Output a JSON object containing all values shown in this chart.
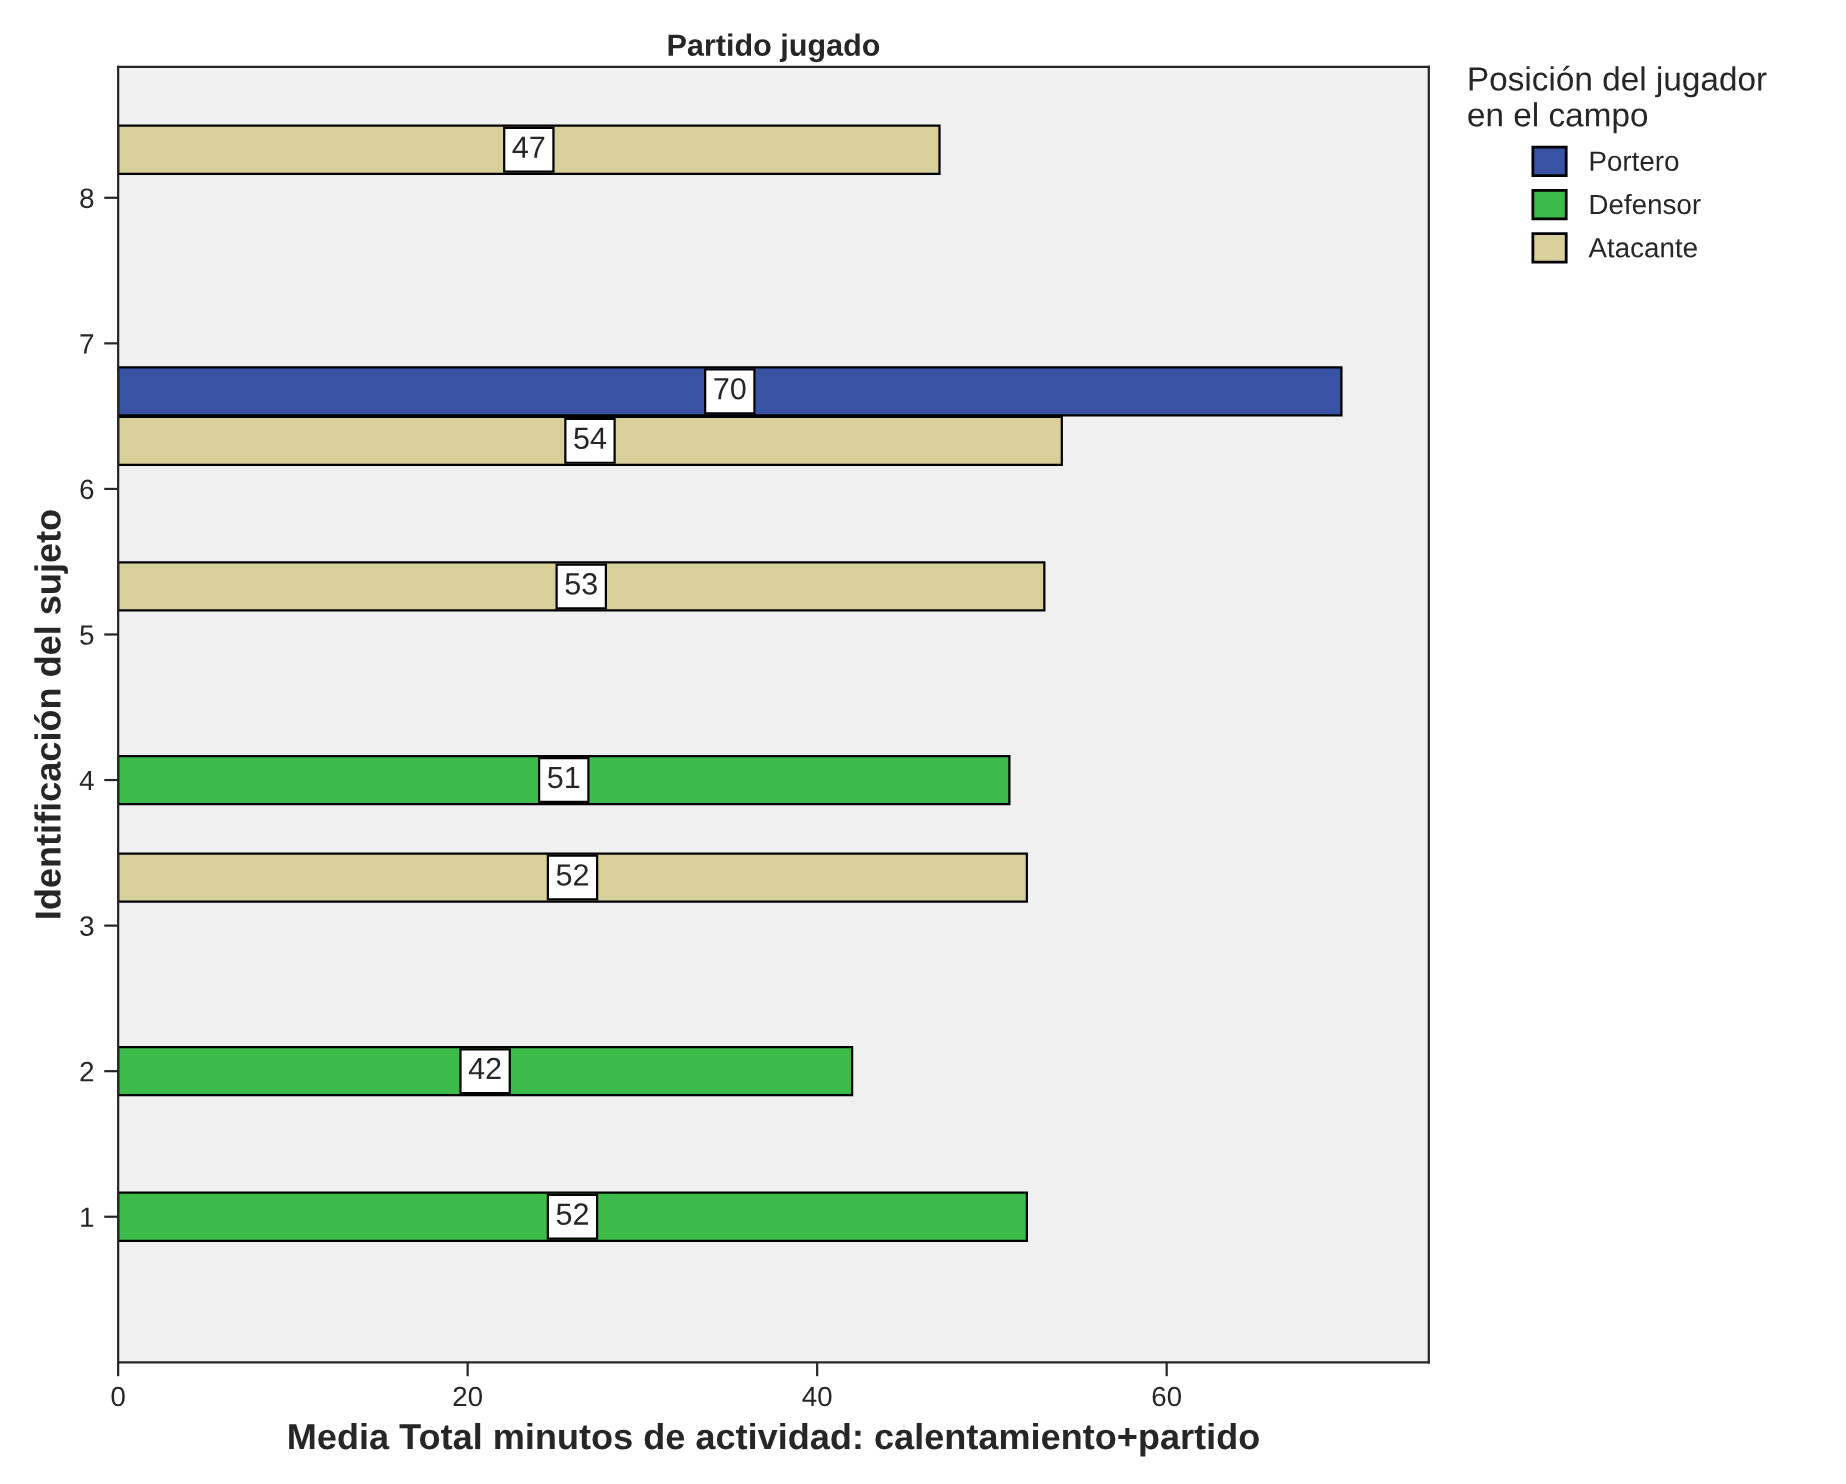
{
  "chart_data": {
    "type": "bar",
    "orientation": "horizontal",
    "title": "Partido jugado",
    "xlabel": "Media Total minutos de actividad: calentamiento+partido",
    "ylabel": "Identificación del sujeto",
    "legend_title": "Posición del jugador\nen el campo",
    "legend": "top right",
    "data_labels": true,
    "grid": false,
    "xlim": [
      0,
      75
    ],
    "xticks": [
      0,
      20,
      40,
      60
    ],
    "ylim": [
      0,
      8.9
    ],
    "yticks": [
      1,
      2,
      3,
      4,
      5,
      6,
      7,
      8
    ],
    "series": [
      {
        "name": "Portero",
        "color": "#3953a4",
        "x": [
          6.67
        ],
        "values": [
          70
        ]
      },
      {
        "name": "Defensor",
        "color": "#3dbb4a",
        "x": [
          1,
          2,
          4
        ],
        "values": [
          52,
          42,
          51
        ]
      },
      {
        "name": "Atacante",
        "color": "#d8cf9a",
        "x": [
          3.33,
          5.33,
          6.33,
          8.33
        ],
        "values": [
          52,
          53,
          54,
          47
        ]
      }
    ]
  }
}
